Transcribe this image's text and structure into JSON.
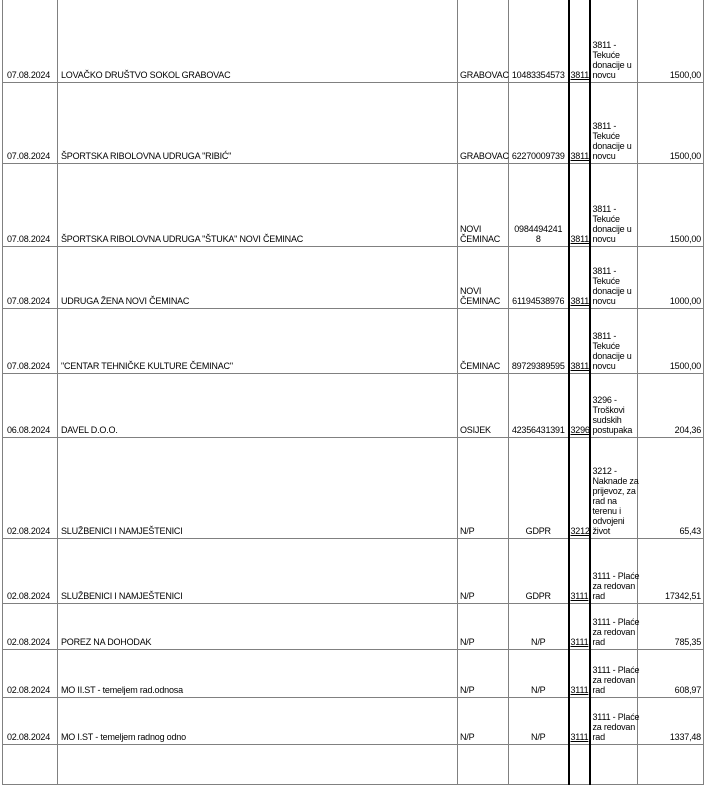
{
  "colors": {
    "gridline": "#808080",
    "code_column_border": "#000000",
    "text": "#000000",
    "background": "#ffffff"
  },
  "table": {
    "rows": [
      {
        "date": "07.08.2024",
        "name": "LOVAČKO DRUŠTVO SOKOL GRABOVAC",
        "place": "GRABOVAC",
        "id": "10483354573",
        "code": "3811",
        "description": "3811 -\nTekuće\ndonacije u\nnovcu",
        "amount": "1500,00"
      },
      {
        "date": "07.08.2024",
        "name": "ŠPORTSKA RIBOLOVNA UDRUGA \"RIBIĆ\"",
        "place": "GRABOVAC",
        "id": "62270009739",
        "code": "3811",
        "description": "3811 -\nTekuće\ndonacije u\nnovcu",
        "amount": "1500,00"
      },
      {
        "date": "07.08.2024",
        "name": "ŠPORTSKA RIBOLOVNA UDRUGA \"ŠTUKA\" NOVI ČEMINAC",
        "place": "NOVI\nČEMINAC",
        "id": "0984494241\n8",
        "code": "3811",
        "description": "3811 -\nTekuće\ndonacije u\nnovcu",
        "amount": "1500,00"
      },
      {
        "date": "07.08.2024",
        "name": "UDRUGA ŽENA NOVI ČEMINAC",
        "place": "NOVI\nČEMINAC",
        "id": "61194538976",
        "code": "3811",
        "description": "3811 -\nTekuće\ndonacije u\nnovcu",
        "amount": "1000,00"
      },
      {
        "date": "07.08.2024",
        "name": "\"CENTAR TEHNIČKE KULTURE ČEMINAC\"",
        "place": "ČEMINAC",
        "id": "89729389595",
        "code": "3811",
        "description": "3811 -\nTekuće\ndonacije u\nnovcu",
        "amount": "1500,00"
      },
      {
        "date": "06.08.2024",
        "name": "DAVEL D.O.O.",
        "place": "OSIJEK",
        "id": "42356431391",
        "code": "3296",
        "description": "3296 -\nTroškovi\nsudskih\npostupaka",
        "amount": "204,36"
      },
      {
        "date": "02.08.2024",
        "name": "SLUŽBENICI I NAMJEŠTENICI",
        "place": "N/P",
        "id": "GDPR",
        "code": "3212",
        "description": "3212 -\nNaknade za\nprijevoz, za\nrad na\nterenu i\nodvojeni\nživot",
        "amount": "65,43"
      },
      {
        "date": "02.08.2024",
        "name": "SLUŽBENICI I NAMJEŠTENICI",
        "place": "N/P",
        "id": "GDPR",
        "code": "3111",
        "description": "3111 - Plaće\nza redovan\nrad",
        "amount": "17342,51"
      },
      {
        "date": "02.08.2024",
        "name": "POREZ NA DOHODAK",
        "place": "N/P",
        "id": "N/P",
        "code": "3111",
        "description": "3111 - Plaće\nza redovan\nrad",
        "amount": "785,35"
      },
      {
        "date": "02.08.2024",
        "name": "MO II.ST - temeljem rad.odnosa",
        "place": "N/P",
        "id": "N/P",
        "code": "3111",
        "description": "3111 - Plaće\nza redovan\nrad",
        "amount": "608,97"
      },
      {
        "date": "02.08.2024",
        "name": "MO I.ST - temeljem radnog odno",
        "place": "N/P",
        "id": "N/P",
        "code": "3111",
        "description": "3111 - Plaće\nza redovan\nrad",
        "amount": "1337,48"
      }
    ]
  }
}
